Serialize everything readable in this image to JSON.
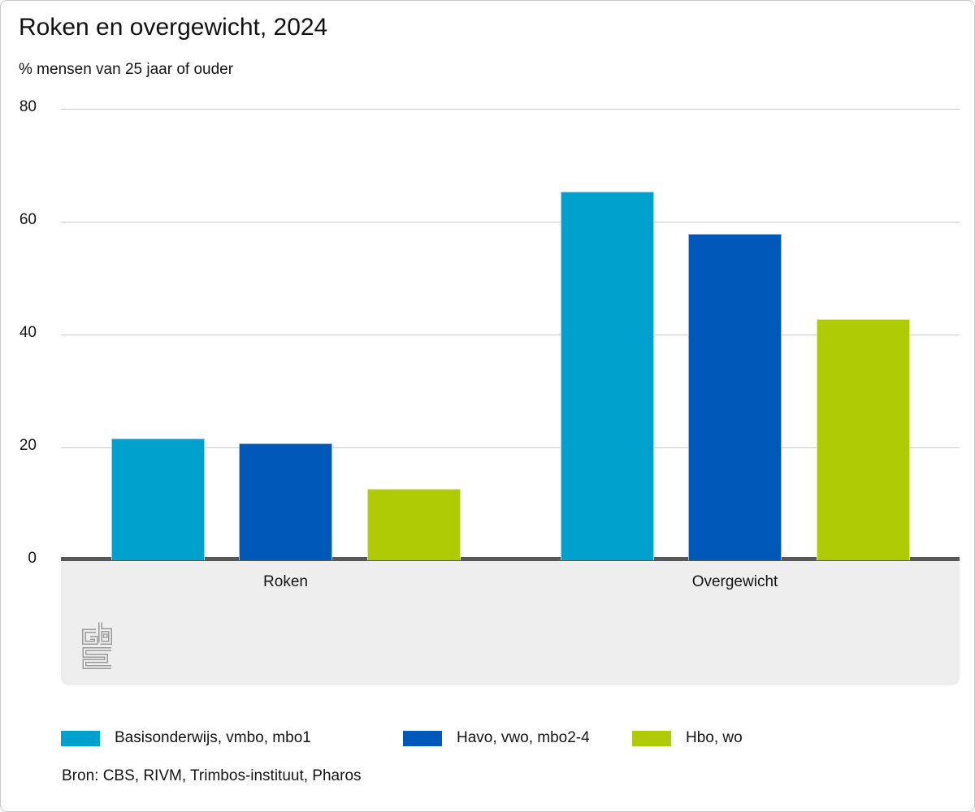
{
  "chart_data": {
    "type": "bar",
    "title": "Roken en overgewicht, 2024",
    "subtitle": "% mensen van 25 jaar of ouder",
    "categories": [
      "Roken",
      "Overgewicht"
    ],
    "series": [
      {
        "name": "Basisonderwijs, vmbo, mbo1",
        "color": "#00a1cd",
        "values": [
          21.6,
          65.3
        ]
      },
      {
        "name": "Havo, vwo, mbo2-4",
        "color": "#0058b8",
        "values": [
          20.7,
          57.8
        ]
      },
      {
        "name": "Hbo, wo",
        "color": "#afcb05",
        "values": [
          12.6,
          42.8
        ]
      }
    ],
    "xlabel": "",
    "ylabel": "% mensen van 25 jaar of ouder",
    "ylim": [
      0,
      80
    ],
    "yticks": [
      0,
      20,
      40,
      60,
      80
    ],
    "grid": true,
    "legend_position": "bottom"
  },
  "footer": {
    "source": "Bron: CBS, RIVM, Trimbos-instituut, Pharos"
  },
  "icons": {
    "logo": "cbs-logo"
  },
  "colors": {
    "axis": "#58585a",
    "grid": "#cccccc",
    "band": "#eeeeee",
    "text": "#141414",
    "logo": "#9a9a9a"
  }
}
